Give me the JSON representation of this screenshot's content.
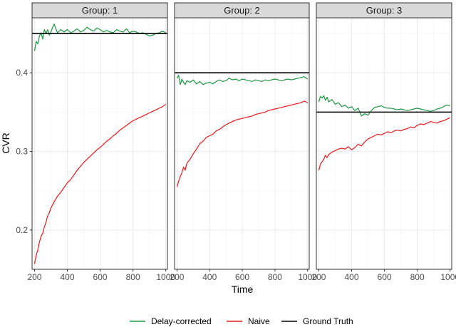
{
  "chart_data": {
    "type": "line",
    "xlabel": "Time",
    "ylabel": "CVR",
    "xlim": [
      185,
      1010
    ],
    "ylim": [
      0.15,
      0.47
    ],
    "x_ticks": [
      200,
      400,
      600,
      800,
      1000
    ],
    "y_ticks": [
      0.2,
      0.3,
      0.4
    ],
    "y_tick_labels": [
      "0.2",
      "0.3",
      "0.4"
    ],
    "legend_position": "bottom",
    "grid": true,
    "colors": {
      "Delay-corrected": "#1a9641",
      "Naive": "#e41a1c",
      "Ground Truth": "#000000"
    },
    "legend": [
      "Delay-corrected",
      "Naive",
      "Ground Truth"
    ],
    "panels": [
      {
        "title": "Group: 1",
        "ground_truth": 0.45,
        "series": [
          {
            "name": "Delay-corrected",
            "x": [
              200,
              210,
              220,
              230,
              240,
              250,
              260,
              270,
              280,
              290,
              300,
              310,
              320,
              330,
              340,
              350,
              360,
              380,
              400,
              420,
              440,
              460,
              480,
              500,
              520,
              540,
              560,
              580,
              600,
              620,
              640,
              660,
              680,
              700,
              720,
              740,
              760,
              780,
              800,
              820,
              840,
              860,
              880,
              900,
              920,
              940,
              960,
              980,
              1000
            ],
            "y": [
              0.428,
              0.44,
              0.437,
              0.447,
              0.451,
              0.443,
              0.455,
              0.45,
              0.455,
              0.448,
              0.452,
              0.458,
              0.462,
              0.456,
              0.451,
              0.453,
              0.455,
              0.452,
              0.455,
              0.451,
              0.453,
              0.456,
              0.452,
              0.454,
              0.458,
              0.455,
              0.453,
              0.457,
              0.455,
              0.452,
              0.454,
              0.452,
              0.451,
              0.455,
              0.453,
              0.452,
              0.456,
              0.451,
              0.453,
              0.452,
              0.45,
              0.451,
              0.449,
              0.447,
              0.448,
              0.45,
              0.451,
              0.453,
              0.451
            ]
          },
          {
            "name": "Naive",
            "x": [
              200,
              210,
              220,
              230,
              240,
              250,
              260,
              270,
              280,
              290,
              300,
              320,
              340,
              360,
              380,
              400,
              420,
              440,
              460,
              480,
              500,
              520,
              540,
              560,
              580,
              600,
              620,
              640,
              660,
              680,
              700,
              720,
              740,
              760,
              780,
              800,
              820,
              840,
              860,
              880,
              900,
              920,
              940,
              960,
              980,
              1000
            ],
            "y": [
              0.157,
              0.168,
              0.175,
              0.185,
              0.192,
              0.196,
              0.204,
              0.21,
              0.218,
              0.222,
              0.228,
              0.236,
              0.243,
              0.248,
              0.254,
              0.26,
              0.264,
              0.27,
              0.276,
              0.281,
              0.286,
              0.29,
              0.294,
              0.298,
              0.302,
              0.305,
              0.309,
              0.313,
              0.316,
              0.32,
              0.323,
              0.327,
              0.33,
              0.333,
              0.336,
              0.339,
              0.341,
              0.343,
              0.345,
              0.347,
              0.349,
              0.351,
              0.353,
              0.355,
              0.357,
              0.36
            ]
          }
        ]
      },
      {
        "title": "Group: 2",
        "ground_truth": 0.4,
        "series": [
          {
            "name": "Delay-corrected",
            "x": [
              200,
              210,
              220,
              230,
              240,
              250,
              260,
              280,
              300,
              320,
              340,
              360,
              380,
              400,
              420,
              440,
              460,
              480,
              500,
              520,
              540,
              560,
              580,
              600,
              620,
              640,
              660,
              680,
              700,
              720,
              740,
              760,
              780,
              800,
              820,
              840,
              860,
              880,
              900,
              920,
              940,
              960,
              980,
              1000
            ],
            "y": [
              0.393,
              0.397,
              0.385,
              0.392,
              0.388,
              0.385,
              0.39,
              0.388,
              0.391,
              0.386,
              0.389,
              0.385,
              0.387,
              0.388,
              0.386,
              0.389,
              0.391,
              0.389,
              0.39,
              0.393,
              0.391,
              0.392,
              0.39,
              0.392,
              0.391,
              0.39,
              0.389,
              0.391,
              0.39,
              0.389,
              0.391,
              0.39,
              0.391,
              0.392,
              0.391,
              0.39,
              0.391,
              0.392,
              0.391,
              0.392,
              0.393,
              0.394,
              0.395,
              0.392
            ]
          },
          {
            "name": "Naive",
            "x": [
              200,
              210,
              220,
              230,
              240,
              250,
              260,
              280,
              300,
              320,
              340,
              360,
              380,
              400,
              420,
              440,
              460,
              480,
              500,
              520,
              540,
              560,
              580,
              600,
              620,
              640,
              660,
              680,
              700,
              720,
              740,
              760,
              780,
              800,
              820,
              840,
              860,
              880,
              900,
              920,
              940,
              960,
              980,
              1000
            ],
            "y": [
              0.255,
              0.262,
              0.268,
              0.273,
              0.28,
              0.276,
              0.285,
              0.29,
              0.297,
              0.303,
              0.31,
              0.313,
              0.318,
              0.32,
              0.322,
              0.326,
              0.328,
              0.331,
              0.334,
              0.336,
              0.338,
              0.34,
              0.341,
              0.342,
              0.343,
              0.344,
              0.345,
              0.347,
              0.348,
              0.349,
              0.35,
              0.352,
              0.353,
              0.354,
              0.355,
              0.356,
              0.357,
              0.358,
              0.359,
              0.36,
              0.361,
              0.362,
              0.364,
              0.362
            ]
          }
        ]
      },
      {
        "title": "Group: 3",
        "ground_truth": 0.35,
        "series": [
          {
            "name": "Delay-corrected",
            "x": [
              200,
              210,
              220,
              230,
              240,
              250,
              260,
              280,
              300,
              320,
              340,
              360,
              380,
              400,
              420,
              440,
              460,
              480,
              500,
              520,
              540,
              560,
              580,
              600,
              620,
              640,
              660,
              680,
              700,
              720,
              740,
              760,
              780,
              800,
              820,
              840,
              860,
              880,
              900,
              920,
              940,
              960,
              980,
              1000
            ],
            "y": [
              0.363,
              0.37,
              0.368,
              0.371,
              0.365,
              0.369,
              0.363,
              0.366,
              0.36,
              0.362,
              0.357,
              0.359,
              0.355,
              0.357,
              0.352,
              0.355,
              0.345,
              0.348,
              0.346,
              0.352,
              0.356,
              0.357,
              0.358,
              0.356,
              0.355,
              0.355,
              0.354,
              0.353,
              0.354,
              0.353,
              0.352,
              0.353,
              0.354,
              0.355,
              0.354,
              0.353,
              0.352,
              0.351,
              0.352,
              0.354,
              0.355,
              0.357,
              0.359,
              0.358
            ]
          },
          {
            "name": "Naive",
            "x": [
              200,
              210,
              220,
              230,
              240,
              250,
              260,
              280,
              300,
              320,
              340,
              360,
              380,
              400,
              420,
              440,
              460,
              480,
              500,
              520,
              540,
              560,
              580,
              600,
              620,
              640,
              660,
              680,
              700,
              720,
              740,
              760,
              780,
              800,
              820,
              840,
              860,
              880,
              900,
              920,
              940,
              960,
              980,
              1000
            ],
            "y": [
              0.276,
              0.284,
              0.287,
              0.29,
              0.295,
              0.292,
              0.296,
              0.299,
              0.301,
              0.303,
              0.304,
              0.303,
              0.306,
              0.302,
              0.305,
              0.309,
              0.307,
              0.312,
              0.316,
              0.318,
              0.32,
              0.322,
              0.321,
              0.323,
              0.325,
              0.324,
              0.326,
              0.327,
              0.326,
              0.328,
              0.329,
              0.331,
              0.33,
              0.333,
              0.335,
              0.334,
              0.336,
              0.338,
              0.337,
              0.336,
              0.338,
              0.339,
              0.341,
              0.343
            ]
          }
        ]
      }
    ]
  }
}
